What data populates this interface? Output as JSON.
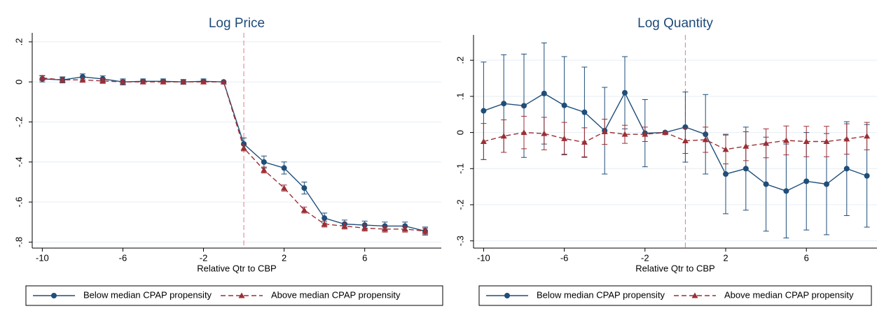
{
  "chart_data": [
    {
      "type": "line",
      "title": "Log Price",
      "x_label": "Relative Qtr to CBP",
      "x": [
        -10,
        -9,
        -8,
        -7,
        -6,
        -5,
        -4,
        -3,
        -2,
        -1,
        0,
        1,
        2,
        3,
        4,
        5,
        6,
        7,
        8,
        9
      ],
      "xlim": [
        -10.5,
        9.8
      ],
      "xticks": [
        -10,
        -6,
        -2,
        2,
        6
      ],
      "ylim": [
        -0.83,
        0.245
      ],
      "yticks": [
        {
          "value": 0.2,
          "label": ".2"
        },
        0,
        {
          "value": -0.2,
          "label": "-.2"
        },
        {
          "value": -0.4,
          "label": "-.4"
        },
        {
          "value": -0.6,
          "label": "-.6"
        },
        {
          "value": -0.8,
          "label": "-.8"
        }
      ],
      "grid": true,
      "vline": 0,
      "vline_color": "#e07a8a",
      "series": [
        {
          "name": "Below median CPAP propensity",
          "color": "#1f4e79",
          "marker": "circle",
          "dash": "solid",
          "values": [
            0.015,
            0.01,
            0.025,
            0.015,
            0.0,
            0.003,
            0.003,
            0.0,
            0.003,
            0,
            -0.31,
            -0.4,
            -0.43,
            -0.53,
            -0.68,
            -0.71,
            -0.715,
            -0.72,
            -0.72,
            -0.745
          ],
          "errors": [
            0.015,
            0.015,
            0.015,
            0.015,
            0.015,
            0.012,
            0.012,
            0.012,
            0.012,
            0,
            0.03,
            0.03,
            0.03,
            0.03,
            0.025,
            0.02,
            0.02,
            0.02,
            0.02,
            0.02
          ]
        },
        {
          "name": "Above median CPAP propensity",
          "color": "#9b2f35",
          "marker": "triangle",
          "dash": "dashed",
          "values": [
            0.02,
            0.01,
            0.01,
            0.005,
            0.0,
            0.0,
            0.0,
            0.0,
            0.0,
            0,
            -0.33,
            -0.44,
            -0.53,
            -0.64,
            -0.71,
            -0.72,
            -0.73,
            -0.735,
            -0.735,
            -0.745
          ],
          "errors": [
            0.012,
            0.012,
            0.012,
            0.012,
            0.01,
            0.01,
            0.01,
            0.01,
            0.01,
            0,
            0.015,
            0.015,
            0.015,
            0.015,
            0.015,
            0.015,
            0.015,
            0.015,
            0.015,
            0.015
          ]
        }
      ]
    },
    {
      "type": "line",
      "title": "Log Quantity",
      "x_label": "Relative Qtr to CBP",
      "x": [
        -10,
        -9,
        -8,
        -7,
        -6,
        -5,
        -4,
        -3,
        -2,
        -1,
        0,
        1,
        2,
        3,
        4,
        5,
        6,
        7,
        8,
        9
      ],
      "xlim": [
        -10.5,
        9.5
      ],
      "xticks": [
        -10,
        -6,
        -2,
        2,
        6
      ],
      "ylim": [
        -0.32,
        0.27
      ],
      "yticks": [
        {
          "value": 0.2,
          "label": ".2"
        },
        {
          "value": 0.1,
          "label": ".1"
        },
        0,
        {
          "value": -0.1,
          "label": "-.1"
        },
        {
          "value": -0.2,
          "label": "-.2"
        },
        {
          "value": -0.3,
          "label": "-.3"
        }
      ],
      "grid": true,
      "vline": 0,
      "vline_color": "#e07a8a",
      "series": [
        {
          "name": "Below median CPAP propensity",
          "color": "#1f4e79",
          "marker": "circle",
          "dash": "solid",
          "values": [
            0.06,
            0.08,
            0.074,
            0.108,
            0.075,
            0.056,
            0.005,
            0.11,
            -0.002,
            0,
            0.015,
            -0.005,
            -0.115,
            -0.1,
            -0.143,
            -0.162,
            -0.135,
            -0.143,
            -0.1,
            -0.12
          ],
          "errors": [
            0.135,
            0.135,
            0.143,
            0.14,
            0.135,
            0.125,
            0.12,
            0.1,
            0.093,
            0,
            0.097,
            0.11,
            0.11,
            0.115,
            0.13,
            0.13,
            0.135,
            0.14,
            0.13,
            0.142
          ]
        },
        {
          "name": "Above median CPAP propensity",
          "color": "#9b2f35",
          "marker": "triangle",
          "dash": "dashed",
          "values": [
            -0.025,
            -0.01,
            0.0,
            -0.003,
            -0.017,
            -0.027,
            0.002,
            -0.005,
            -0.005,
            0,
            -0.023,
            -0.02,
            -0.047,
            -0.038,
            -0.03,
            -0.022,
            -0.025,
            -0.025,
            -0.018,
            -0.01
          ],
          "errors": [
            0.05,
            0.045,
            0.045,
            0.045,
            0.045,
            0.04,
            0.035,
            0.025,
            0.02,
            0,
            0.035,
            0.035,
            0.04,
            0.04,
            0.04,
            0.04,
            0.042,
            0.042,
            0.042,
            0.038
          ]
        }
      ]
    }
  ]
}
